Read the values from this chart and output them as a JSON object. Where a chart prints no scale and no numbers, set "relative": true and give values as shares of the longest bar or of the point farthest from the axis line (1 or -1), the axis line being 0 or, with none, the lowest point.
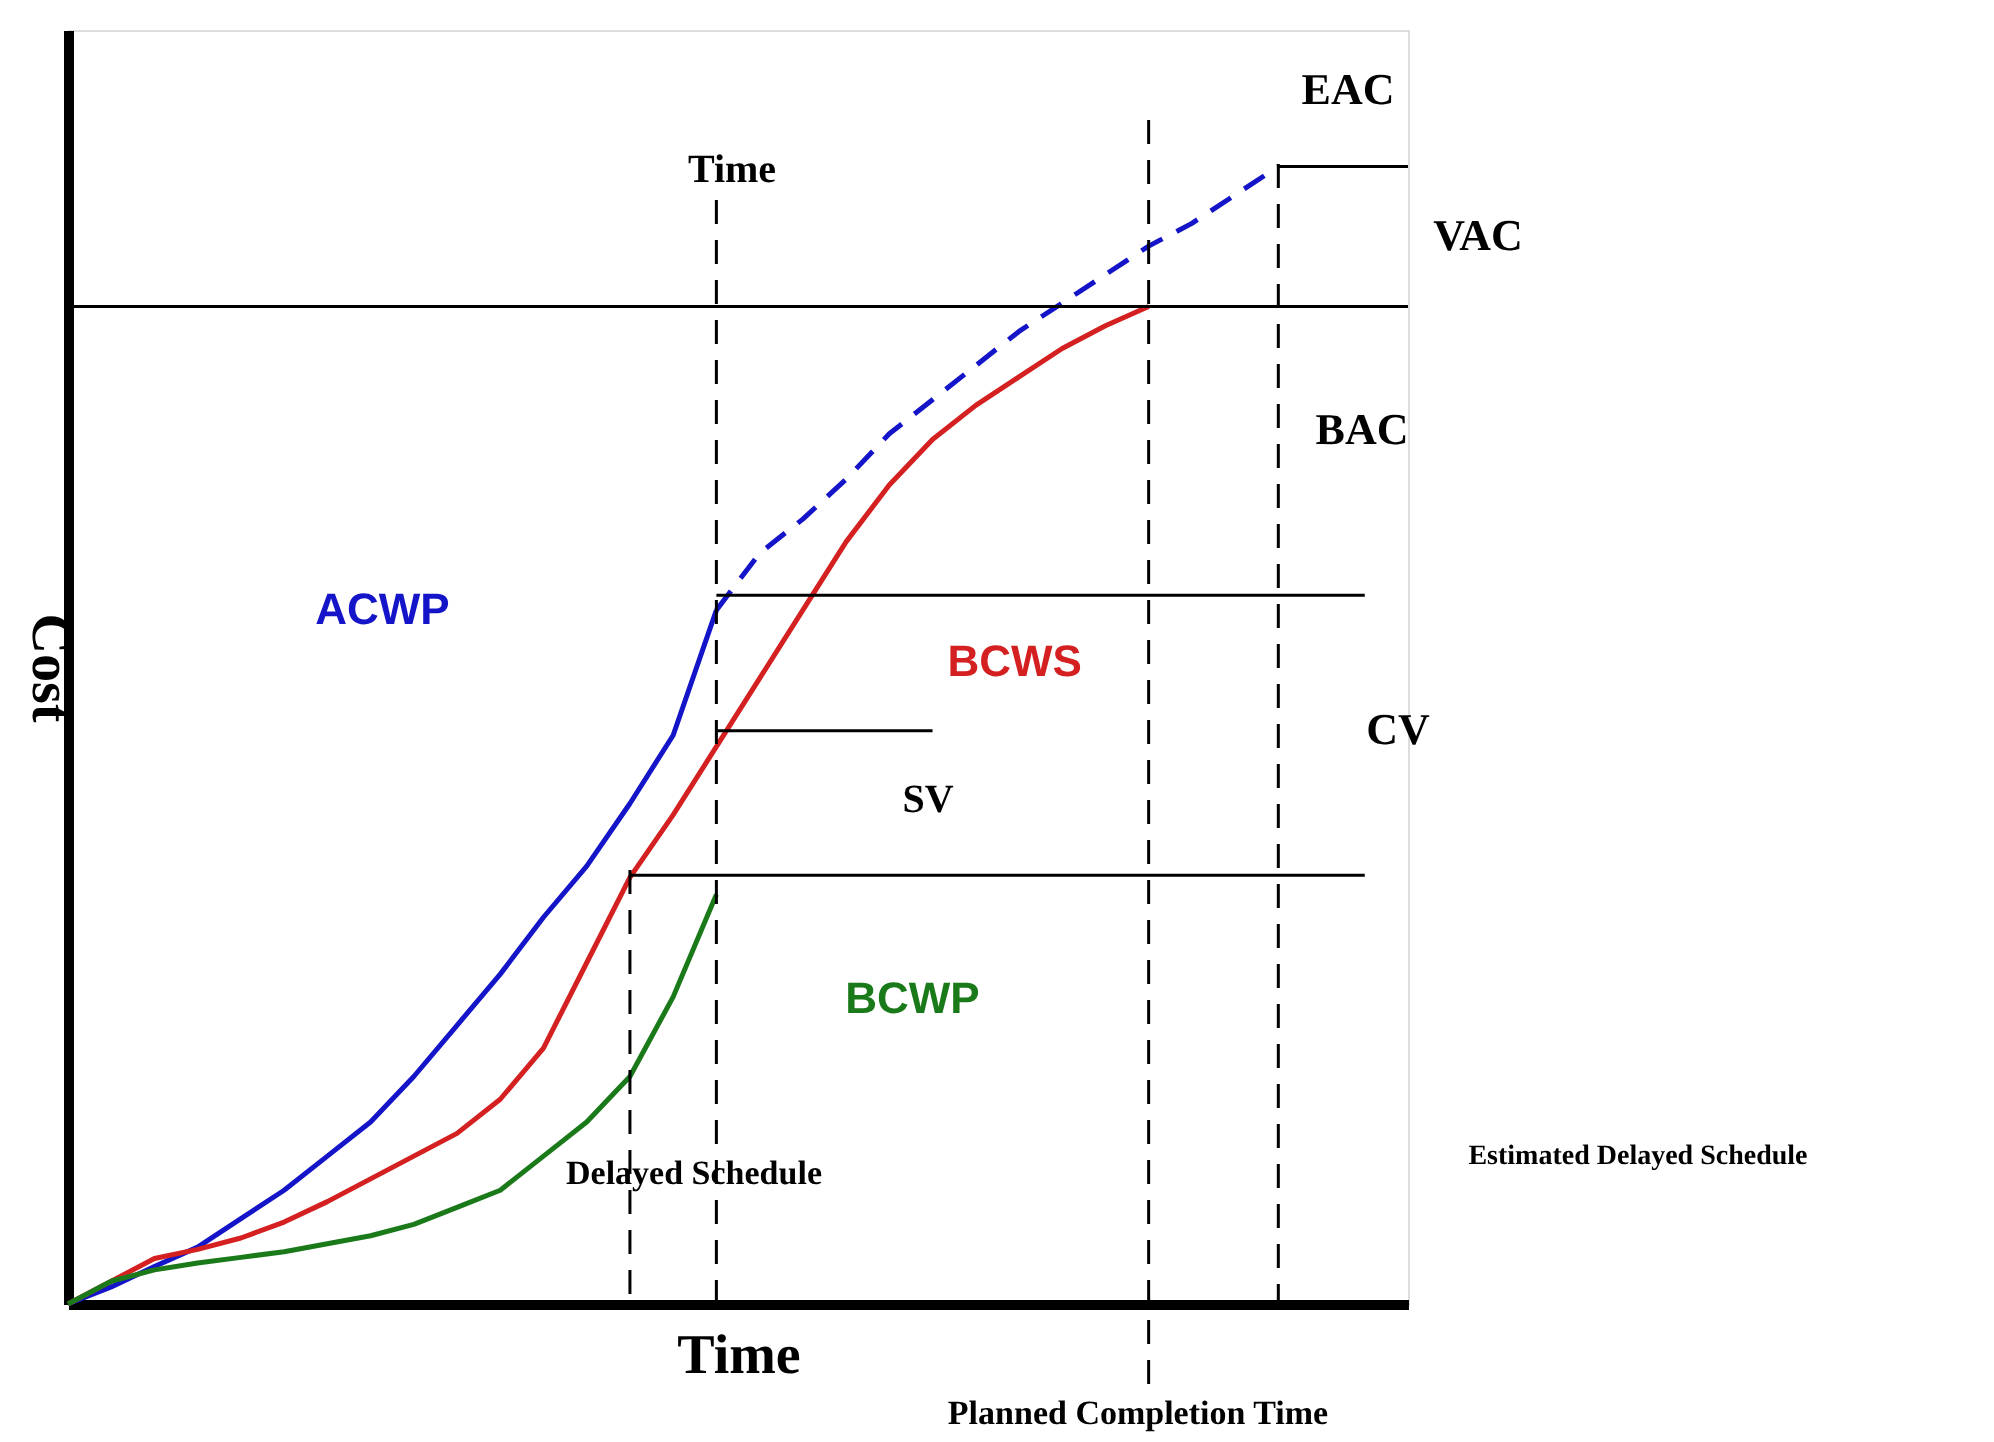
{
  "chart_data": {
    "type": "line",
    "relative": true,
    "xlabel": "Time",
    "ylabel": "Cost",
    "categories": [
      null,
      null,
      null,
      null,
      null,
      null,
      null,
      null,
      null,
      null,
      null,
      null,
      null,
      null,
      null,
      null,
      null,
      null,
      null,
      null,
      null,
      null,
      null,
      null,
      null,
      null,
      null,
      null,
      null,
      null,
      null,
      null
    ],
    "series": [
      {
        "name": "ACWP",
        "color": "#1414c8",
        "line_style": "solid",
        "values": [
          0,
          0.015,
          0.033,
          0.05,
          0.075,
          0.1,
          0.13,
          0.16,
          0.2,
          0.245,
          0.29,
          0.34,
          0.385,
          0.44,
          0.5,
          0.61,
          null,
          null,
          null,
          null,
          null,
          null,
          null,
          null,
          null,
          null,
          null,
          null,
          null,
          null,
          null,
          null
        ]
      },
      {
        "color": "#1414c8",
        "line_style": "dashed",
        "values": [
          null,
          null,
          null,
          null,
          null,
          null,
          null,
          null,
          null,
          null,
          null,
          null,
          null,
          null,
          null,
          0.61,
          0.66,
          0.69,
          0.725,
          0.765,
          0.795,
          0.825,
          0.855,
          0.88,
          0.905,
          0.93,
          0.95,
          0.975,
          1.0,
          null,
          null,
          null
        ]
      },
      {
        "name": "BCWS",
        "color": "#d42020",
        "line_style": "solid",
        "values": [
          0,
          0.02,
          0.04,
          0.048,
          0.058,
          0.072,
          0.09,
          0.11,
          0.13,
          0.15,
          0.18,
          0.225,
          0.3,
          0.375,
          0.43,
          0.49,
          0.55,
          0.61,
          0.67,
          0.72,
          0.76,
          0.79,
          0.815,
          0.84,
          0.86,
          0.877,
          null,
          null,
          null,
          null,
          null,
          null
        ]
      },
      {
        "name": "BCWP",
        "color": "#1a7a1a",
        "line_style": "solid",
        "values": [
          0,
          0.02,
          0.03,
          0.036,
          0.041,
          0.046,
          0.053,
          0.06,
          0.07,
          0.085,
          0.1,
          0.13,
          0.16,
          0.2,
          0.27,
          0.36,
          null,
          null,
          null,
          null,
          null,
          null,
          null,
          null,
          null,
          null,
          null,
          null,
          null,
          null,
          null,
          null
        ]
      },
      {
        "color": "#000000",
        "line_style": "solid",
        "values": [
          null,
          null,
          null,
          null,
          null,
          null,
          null,
          null,
          null,
          null,
          null,
          null,
          null,
          null,
          null,
          null,
          null,
          null,
          null,
          null,
          null,
          null,
          null,
          null,
          null,
          null,
          null,
          null,
          1.0,
          1.0,
          1.0,
          1.0
        ]
      },
      {
        "color": "#000000",
        "line_style": "solid",
        "values": [
          null,
          null,
          null,
          null,
          null,
          null,
          null,
          null,
          null,
          null,
          null,
          null,
          null,
          null,
          null,
          0.623,
          0.623,
          0.623,
          0.623,
          0.623,
          0.623,
          0.623,
          0.623,
          0.623,
          0.623,
          0.623,
          0.623,
          0.623,
          0.623,
          0.623,
          0.623,
          null
        ]
      },
      {
        "color": "#000000",
        "line_style": "solid",
        "values": [
          null,
          null,
          null,
          null,
          null,
          null,
          null,
          null,
          null,
          null,
          null,
          null,
          null,
          null,
          null,
          0.504,
          0.504,
          0.504,
          0.504,
          0.504,
          0.504,
          null,
          null,
          null,
          null,
          null,
          null,
          null,
          null,
          null,
          null,
          null
        ]
      },
      {
        "color": "#000000",
        "line_style": "solid",
        "values": [
          null,
          null,
          null,
          null,
          null,
          null,
          null,
          null,
          null,
          null,
          null,
          null,
          null,
          0.377,
          0.377,
          0.377,
          0.377,
          0.377,
          0.377,
          0.377,
          0.377,
          0.377,
          0.377,
          0.377,
          0.377,
          0.377,
          0.377,
          0.377,
          0.377,
          0.377,
          0.377,
          null
        ]
      }
    ],
    "ref_lines": [
      {
        "axis": "y",
        "value": 0.877,
        "color": "#000000",
        "line_style": "solid"
      }
    ],
    "annotations": [
      "Time",
      "EAC",
      "VAC",
      "BAC",
      "CV",
      "SV",
      "Delayed Schedule",
      "Estimated Delayed Schedule",
      "Planned Completion Time"
    ]
  }
}
